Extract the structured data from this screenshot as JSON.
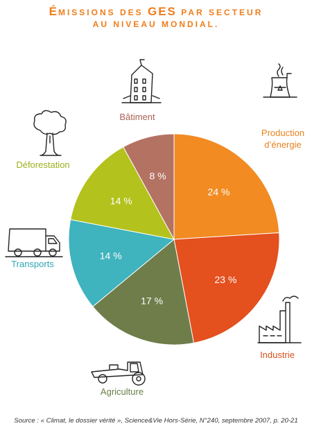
{
  "title": {
    "line1_prefix": "É",
    "line1_a": "MISSIONS DES ",
    "line1_b": "GES",
    "line1_c": " PAR SECTEUR",
    "line2": "AU NIVEAU MONDIAL."
  },
  "chart_data": {
    "type": "pie",
    "categories": [
      "Production d’énergie",
      "Industrie",
      "Agriculture",
      "Transports",
      "Déforestation",
      "Bâtiment"
    ],
    "values": [
      24,
      23,
      17,
      14,
      14,
      8
    ],
    "value_labels": [
      "24 %",
      "23 %",
      "17 %",
      "14 %",
      "14 %",
      "8 %"
    ],
    "colors": [
      "#f18b22",
      "#e4501e",
      "#6e7d4a",
      "#3fb3be",
      "#b3c21c",
      "#b47263"
    ],
    "label_colors": [
      "#e8811e",
      "#d9501e",
      "#6b7c45",
      "#2fa5b3",
      "#9cb01a",
      "#a86255"
    ],
    "start_angle_deg": 0,
    "direction": "clockwise"
  },
  "icons": [
    "power-plant-icon",
    "factory-icon",
    "tractor-icon",
    "truck-icon",
    "tree-icon",
    "building-icon"
  ],
  "source": "Source : « Climat, le dossier vérité », Science&Vie Hors-Série, N°240, septembre 2007, p. 20-21"
}
